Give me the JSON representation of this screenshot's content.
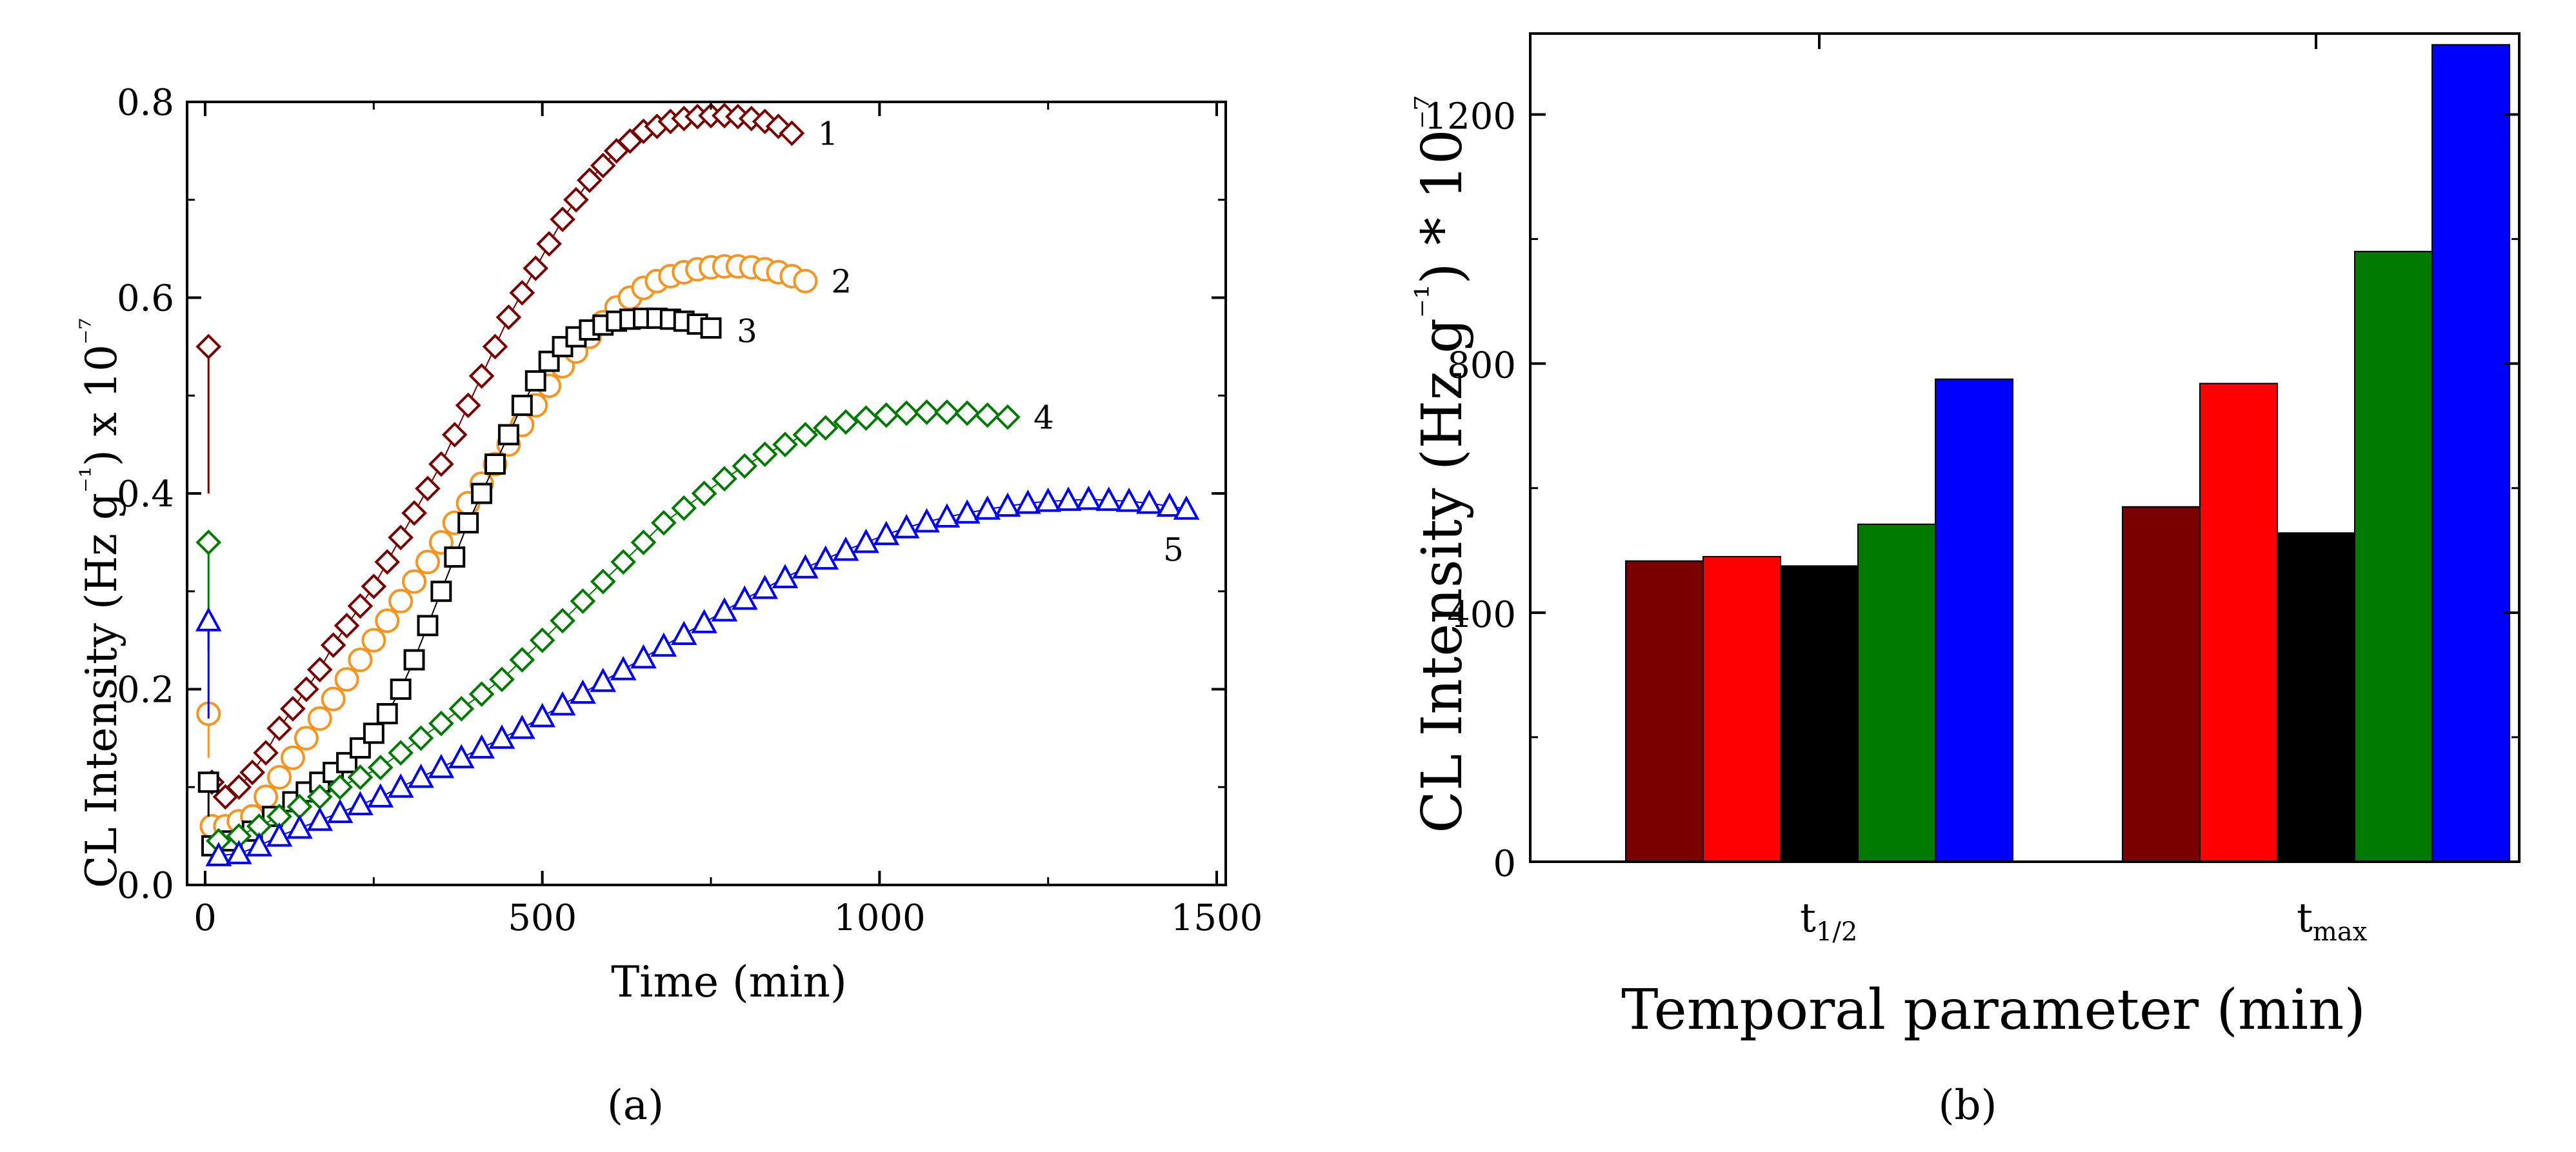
{
  "chart_data": [
    {
      "type": "scatter",
      "caption": "(a)",
      "xlabel": "Time (min)",
      "ylabel": "CL Intensity (Hz g⁻¹) x 10⁻⁷",
      "xlim": [
        0,
        1500
      ],
      "ylim": [
        0,
        0.8
      ],
      "x_ticks": [
        "0",
        "500",
        "1000",
        "1500"
      ],
      "y_ticks": [
        "0.0",
        "0.2",
        "0.4",
        "0.6",
        "0.8"
      ],
      "series": [
        {
          "label": "1",
          "marker": "diamond",
          "color": "#7a0000",
          "initial": [
            [
              5,
              0.55
            ],
            [
              5,
              0.4
            ]
          ],
          "points": [
            [
              10,
              0.105
            ],
            [
              30,
              0.09
            ],
            [
              50,
              0.1
            ],
            [
              70,
              0.115
            ],
            [
              90,
              0.135
            ],
            [
              110,
              0.16
            ],
            [
              130,
              0.18
            ],
            [
              150,
              0.2
            ],
            [
              170,
              0.22
            ],
            [
              190,
              0.245
            ],
            [
              210,
              0.265
            ],
            [
              230,
              0.285
            ],
            [
              250,
              0.305
            ],
            [
              270,
              0.33
            ],
            [
              290,
              0.355
            ],
            [
              310,
              0.38
            ],
            [
              330,
              0.405
            ],
            [
              350,
              0.43
            ],
            [
              370,
              0.46
            ],
            [
              390,
              0.49
            ],
            [
              410,
              0.52
            ],
            [
              430,
              0.55
            ],
            [
              450,
              0.58
            ],
            [
              470,
              0.605
            ],
            [
              490,
              0.63
            ],
            [
              510,
              0.655
            ],
            [
              530,
              0.68
            ],
            [
              550,
              0.7
            ],
            [
              570,
              0.72
            ],
            [
              590,
              0.735
            ],
            [
              610,
              0.75
            ],
            [
              630,
              0.76
            ],
            [
              650,
              0.77
            ],
            [
              670,
              0.775
            ],
            [
              690,
              0.78
            ],
            [
              710,
              0.783
            ],
            [
              730,
              0.785
            ],
            [
              750,
              0.786
            ],
            [
              770,
              0.786
            ],
            [
              790,
              0.785
            ],
            [
              810,
              0.783
            ],
            [
              830,
              0.78
            ],
            [
              850,
              0.775
            ],
            [
              870,
              0.768
            ]
          ]
        },
        {
          "label": "2",
          "marker": "circle",
          "color": "#f7941d",
          "initial": [
            [
              5,
              0.175
            ],
            [
              5,
              0.13
            ]
          ],
          "points": [
            [
              10,
              0.06
            ],
            [
              30,
              0.06
            ],
            [
              50,
              0.065
            ],
            [
              70,
              0.07
            ],
            [
              90,
              0.09
            ],
            [
              110,
              0.11
            ],
            [
              130,
              0.13
            ],
            [
              150,
              0.15
            ],
            [
              170,
              0.17
            ],
            [
              190,
              0.19
            ],
            [
              210,
              0.21
            ],
            [
              230,
              0.23
            ],
            [
              250,
              0.25
            ],
            [
              270,
              0.27
            ],
            [
              290,
              0.29
            ],
            [
              310,
              0.31
            ],
            [
              330,
              0.33
            ],
            [
              350,
              0.35
            ],
            [
              370,
              0.37
            ],
            [
              390,
              0.39
            ],
            [
              410,
              0.41
            ],
            [
              430,
              0.43
            ],
            [
              450,
              0.45
            ],
            [
              470,
              0.47
            ],
            [
              490,
              0.49
            ],
            [
              510,
              0.51
            ],
            [
              530,
              0.53
            ],
            [
              550,
              0.545
            ],
            [
              570,
              0.56
            ],
            [
              590,
              0.575
            ],
            [
              610,
              0.59
            ],
            [
              630,
              0.6
            ],
            [
              650,
              0.61
            ],
            [
              670,
              0.617
            ],
            [
              690,
              0.622
            ],
            [
              710,
              0.626
            ],
            [
              730,
              0.629
            ],
            [
              750,
              0.631
            ],
            [
              770,
              0.632
            ],
            [
              790,
              0.632
            ],
            [
              810,
              0.631
            ],
            [
              830,
              0.629
            ],
            [
              850,
              0.626
            ],
            [
              870,
              0.622
            ],
            [
              890,
              0.617
            ]
          ]
        },
        {
          "label": "3",
          "marker": "square",
          "color": "#000000",
          "initial": [
            [
              5,
              0.105
            ],
            [
              5,
              0.07
            ]
          ],
          "points": [
            [
              10,
              0.04
            ],
            [
              40,
              0.045
            ],
            [
              70,
              0.055
            ],
            [
              100,
              0.07
            ],
            [
              130,
              0.085
            ],
            [
              150,
              0.095
            ],
            [
              170,
              0.105
            ],
            [
              190,
              0.115
            ],
            [
              210,
              0.125
            ],
            [
              230,
              0.14
            ],
            [
              250,
              0.155
            ],
            [
              270,
              0.175
            ],
            [
              290,
              0.2
            ],
            [
              310,
              0.23
            ],
            [
              330,
              0.265
            ],
            [
              350,
              0.3
            ],
            [
              370,
              0.335
            ],
            [
              390,
              0.37
            ],
            [
              410,
              0.4
            ],
            [
              430,
              0.43
            ],
            [
              450,
              0.46
            ],
            [
              470,
              0.49
            ],
            [
              490,
              0.515
            ],
            [
              510,
              0.535
            ],
            [
              530,
              0.55
            ],
            [
              550,
              0.56
            ],
            [
              570,
              0.567
            ],
            [
              590,
              0.572
            ],
            [
              610,
              0.576
            ],
            [
              630,
              0.578
            ],
            [
              650,
              0.579
            ],
            [
              670,
              0.579
            ],
            [
              690,
              0.578
            ],
            [
              710,
              0.576
            ],
            [
              730,
              0.573
            ],
            [
              750,
              0.569
            ]
          ]
        },
        {
          "label": "4",
          "marker": "diamond",
          "color": "#007a00",
          "initial": [
            [
              5,
              0.35
            ],
            [
              5,
              0.24
            ]
          ],
          "points": [
            [
              20,
              0.045
            ],
            [
              50,
              0.05
            ],
            [
              80,
              0.06
            ],
            [
              110,
              0.07
            ],
            [
              140,
              0.08
            ],
            [
              170,
              0.09
            ],
            [
              200,
              0.1
            ],
            [
              230,
              0.11
            ],
            [
              260,
              0.12
            ],
            [
              290,
              0.135
            ],
            [
              320,
              0.15
            ],
            [
              350,
              0.165
            ],
            [
              380,
              0.18
            ],
            [
              410,
              0.195
            ],
            [
              440,
              0.21
            ],
            [
              470,
              0.23
            ],
            [
              500,
              0.25
            ],
            [
              530,
              0.27
            ],
            [
              560,
              0.29
            ],
            [
              590,
              0.31
            ],
            [
              620,
              0.33
            ],
            [
              650,
              0.35
            ],
            [
              680,
              0.37
            ],
            [
              710,
              0.385
            ],
            [
              740,
              0.4
            ],
            [
              770,
              0.415
            ],
            [
              800,
              0.428
            ],
            [
              830,
              0.44
            ],
            [
              860,
              0.45
            ],
            [
              890,
              0.46
            ],
            [
              920,
              0.467
            ],
            [
              950,
              0.473
            ],
            [
              980,
              0.477
            ],
            [
              1010,
              0.48
            ],
            [
              1040,
              0.482
            ],
            [
              1070,
              0.483
            ],
            [
              1100,
              0.483
            ],
            [
              1130,
              0.482
            ],
            [
              1160,
              0.48
            ],
            [
              1190,
              0.478
            ]
          ]
        },
        {
          "label": "5",
          "marker": "triangle",
          "color": "#0000ff",
          "initial": [
            [
              5,
              0.27
            ],
            [
              5,
              0.17
            ]
          ],
          "points": [
            [
              20,
              0.03
            ],
            [
              50,
              0.032
            ],
            [
              80,
              0.04
            ],
            [
              110,
              0.05
            ],
            [
              140,
              0.058
            ],
            [
              170,
              0.066
            ],
            [
              200,
              0.074
            ],
            [
              230,
              0.082
            ],
            [
              260,
              0.09
            ],
            [
              290,
              0.1
            ],
            [
              320,
              0.11
            ],
            [
              350,
              0.12
            ],
            [
              380,
              0.13
            ],
            [
              410,
              0.14
            ],
            [
              440,
              0.15
            ],
            [
              470,
              0.16
            ],
            [
              500,
              0.172
            ],
            [
              530,
              0.184
            ],
            [
              560,
              0.196
            ],
            [
              590,
              0.208
            ],
            [
              620,
              0.22
            ],
            [
              650,
              0.232
            ],
            [
              680,
              0.244
            ],
            [
              710,
              0.256
            ],
            [
              740,
              0.268
            ],
            [
              770,
              0.28
            ],
            [
              800,
              0.292
            ],
            [
              830,
              0.303
            ],
            [
              860,
              0.314
            ],
            [
              890,
              0.324
            ],
            [
              920,
              0.333
            ],
            [
              950,
              0.342
            ],
            [
              980,
              0.35
            ],
            [
              1010,
              0.358
            ],
            [
              1040,
              0.365
            ],
            [
              1070,
              0.371
            ],
            [
              1100,
              0.376
            ],
            [
              1130,
              0.38
            ],
            [
              1160,
              0.384
            ],
            [
              1190,
              0.387
            ],
            [
              1220,
              0.39
            ],
            [
              1250,
              0.392
            ],
            [
              1280,
              0.393
            ],
            [
              1310,
              0.394
            ],
            [
              1340,
              0.393
            ],
            [
              1370,
              0.392
            ],
            [
              1400,
              0.39
            ],
            [
              1430,
              0.387
            ],
            [
              1455,
              0.384
            ]
          ]
        }
      ]
    },
    {
      "type": "bar",
      "caption": "(b)",
      "xlabel": "Temporal parameter (min)",
      "ylabel": "CL Intensity (Hz g⁻¹) * 10⁻⁷",
      "ylim": [
        0,
        1330
      ],
      "y_ticks": [
        "0",
        "400",
        "800",
        "1200"
      ],
      "categories": [
        {
          "base": "t",
          "sub": "1/2"
        },
        {
          "base": "t",
          "sub": "max"
        }
      ],
      "colors": [
        "#7a0000",
        "#ff0000",
        "#000000",
        "#007a00",
        "#0000ff"
      ],
      "values": [
        [
          483,
          490,
          475,
          542,
          775
        ],
        [
          570,
          768,
          528,
          980,
          1312
        ]
      ]
    }
  ]
}
